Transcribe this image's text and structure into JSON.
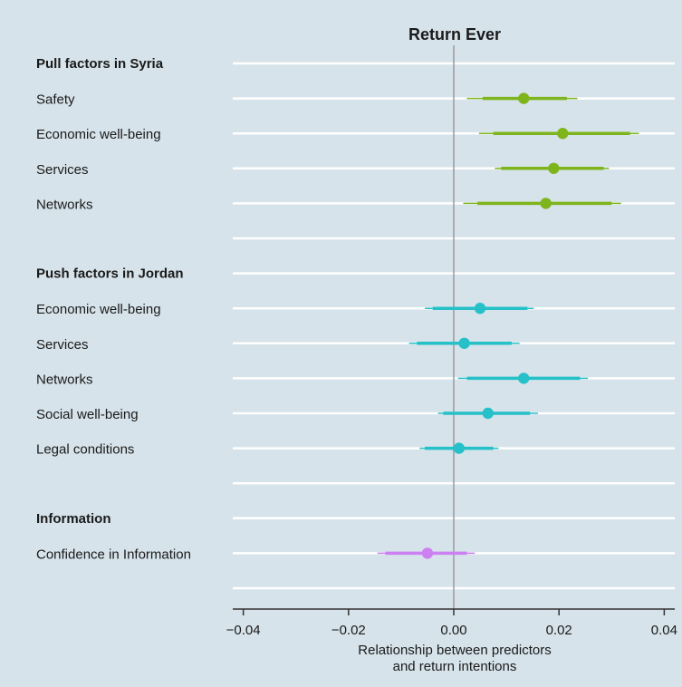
{
  "chart_data": {
    "type": "forest",
    "title": "Return Ever",
    "xlabel": [
      "Relationship between predictors",
      "and return intentions"
    ],
    "xlim": [
      -0.042,
      0.042
    ],
    "xticks": [
      -0.04,
      -0.02,
      0.0,
      0.02,
      0.04
    ],
    "xtick_labels": [
      "−0.04",
      "−0.02",
      "0.00",
      "0.02",
      "0.04"
    ],
    "reference_line": 0,
    "grid": true,
    "colors": {
      "background": "#d6e3ea",
      "gridline": "#ffffff",
      "reference_line": "#9a9a9a",
      "pull": "#7fb51c",
      "push": "#26c0c8",
      "information": "#cc80f2"
    },
    "groups": [
      {
        "name": "Pull factors in Syria",
        "color_key": "pull",
        "items": [
          {
            "label": "Safety",
            "estimate": 0.0133,
            "ci90": [
              0.0055,
              0.0215
            ],
            "ci95": [
              0.0025,
              0.0235
            ]
          },
          {
            "label": "Economic well-being",
            "estimate": 0.0207,
            "ci90": [
              0.0075,
              0.0335
            ],
            "ci95": [
              0.0048,
              0.0352
            ]
          },
          {
            "label": "Services",
            "estimate": 0.019,
            "ci90": [
              0.009,
              0.0285
            ],
            "ci95": [
              0.0078,
              0.0295
            ]
          },
          {
            "label": "Networks",
            "estimate": 0.0175,
            "ci90": [
              0.0045,
              0.03
            ],
            "ci95": [
              0.0018,
              0.0318
            ]
          }
        ]
      },
      {
        "name": "Push factors in Jordan",
        "color_key": "push",
        "items": [
          {
            "label": "Economic well-being",
            "estimate": 0.005,
            "ci90": [
              -0.004,
              0.014
            ],
            "ci95": [
              -0.0055,
              0.0152
            ]
          },
          {
            "label": "Services",
            "estimate": 0.002,
            "ci90": [
              -0.007,
              0.011
            ],
            "ci95": [
              -0.0085,
              0.0125
            ]
          },
          {
            "label": "Networks",
            "estimate": 0.0133,
            "ci90": [
              0.0025,
              0.024
            ],
            "ci95": [
              0.0008,
              0.0255
            ]
          },
          {
            "label": "Social well-being",
            "estimate": 0.0065,
            "ci90": [
              -0.002,
              0.0145
            ],
            "ci95": [
              -0.003,
              0.016
            ]
          },
          {
            "label": "Legal conditions",
            "estimate": 0.001,
            "ci90": [
              -0.0055,
              0.0075
            ],
            "ci95": [
              -0.0065,
              0.0085
            ]
          }
        ]
      },
      {
        "name": "Information",
        "color_key": "information",
        "items": [
          {
            "label": "Confidence in Information",
            "estimate": -0.005,
            "ci90": [
              -0.013,
              0.0025
            ],
            "ci95": [
              -0.0145,
              0.004
            ]
          }
        ]
      }
    ]
  }
}
